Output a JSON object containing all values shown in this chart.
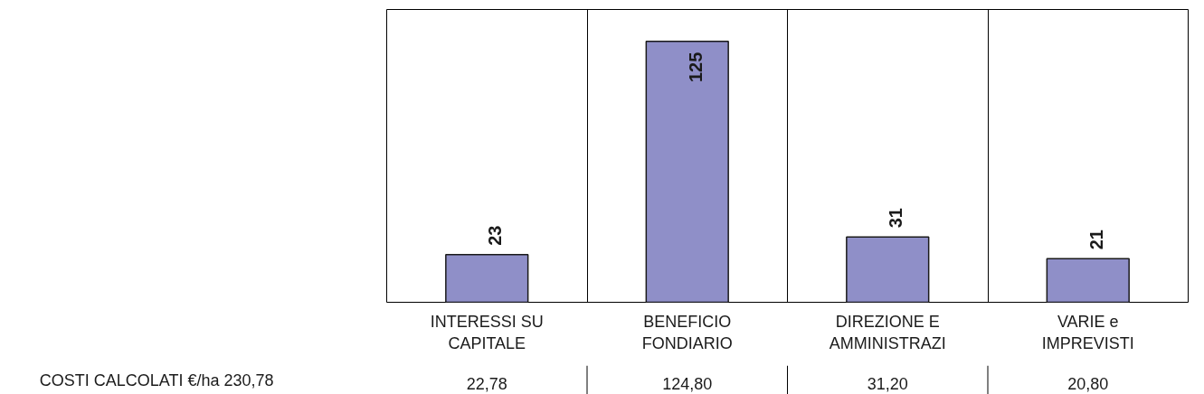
{
  "chart_data": {
    "type": "bar",
    "categories": [
      "INTERESSI SU CAPITALE",
      "BENEFICIO FONDIARIO",
      "DIREZIONE E AMMINISTRAZI",
      "VARIE e IMPREVISTI"
    ],
    "values": [
      22.78,
      124.8,
      31.2,
      20.8
    ],
    "value_labels": [
      "23",
      "125",
      "31",
      "21"
    ],
    "color": "#8f8fc8",
    "ylim": [
      0,
      140
    ],
    "tick_labels": "x",
    "grid": "x",
    "annotations": [
      "COSTI CALCOLATI €/ha  230,78",
      "22,78",
      "124,80",
      "31,20",
      "20,80"
    ]
  }
}
